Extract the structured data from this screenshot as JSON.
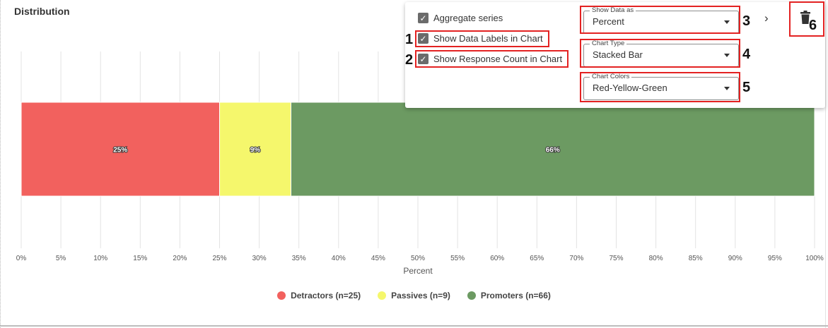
{
  "panel": {
    "title": "Distribution"
  },
  "chart_data": {
    "type": "bar",
    "orientation": "horizontal",
    "stacked": true,
    "categories": [
      ""
    ],
    "series": [
      {
        "name": "Detractors (n=25)",
        "values": [
          25
        ],
        "label": "25%",
        "color": "#f2615e"
      },
      {
        "name": "Passives (n=9)",
        "values": [
          9
        ],
        "label": "9%",
        "color": "#f5f76c"
      },
      {
        "name": "Promoters (n=66)",
        "values": [
          66
        ],
        "label": "66%",
        "color": "#6c9a62"
      }
    ],
    "xlabel": "Percent",
    "xlim": [
      0,
      100
    ],
    "xticks": [
      "0%",
      "5%",
      "10%",
      "15%",
      "20%",
      "25%",
      "30%",
      "35%",
      "40%",
      "45%",
      "50%",
      "55%",
      "60%",
      "65%",
      "70%",
      "75%",
      "80%",
      "85%",
      "90%",
      "95%",
      "100%"
    ],
    "grid": true,
    "legend_position": "bottom"
  },
  "settings": {
    "aggregate_series": {
      "label": "Aggregate series",
      "checked": true
    },
    "show_data_labels": {
      "label": "Show Data Labels in Chart",
      "checked": true
    },
    "show_response_count": {
      "label": "Show Response Count in Chart",
      "checked": true
    },
    "show_data_as": {
      "label": "Show Data as",
      "value": "Percent"
    },
    "chart_type": {
      "label": "Chart Type",
      "value": "Stacked Bar"
    },
    "chart_colors": {
      "label": "Chart Colors",
      "value": "Red-Yellow-Green"
    },
    "check_glyph": "✓",
    "chevron_glyph": "›",
    "icons": {
      "expand": "chevron-right-icon",
      "delete": "trash-icon"
    }
  },
  "annotations": {
    "n1": "1",
    "n2": "2",
    "n3": "3",
    "n4": "4",
    "n5": "5",
    "n6": "6"
  }
}
